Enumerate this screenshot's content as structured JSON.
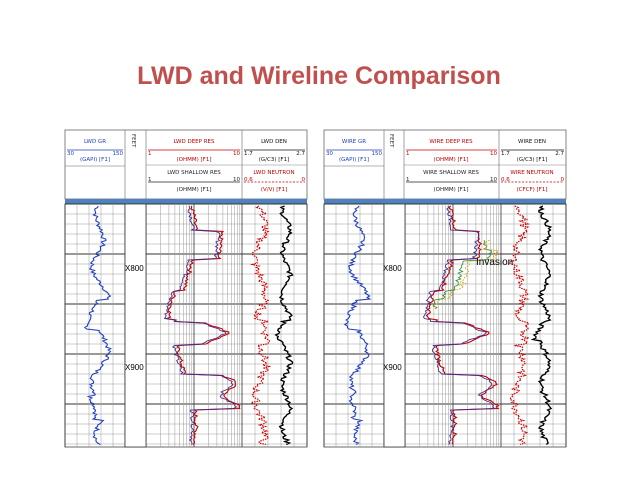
{
  "slide": {
    "title": "LWD and Wireline Comparison",
    "accent_color": "#c0504d",
    "divider_color": "#4f81bd"
  },
  "panels": [
    {
      "id": "lwd",
      "depth_track_label": "FEET",
      "track1": {
        "name": "LWD GR",
        "unit": "(GAPI) [F1]",
        "scale_min": "30",
        "scale_max": "150",
        "color": "#1f3fbf"
      },
      "track2": {
        "name": "LWD DEEP RES",
        "unit": "(OHMM) [F1]",
        "scale_min": "1",
        "scale_max": "10",
        "name2": "LWD SHALLOW RES",
        "unit2": "(OHMM) [F1]",
        "scale2_min": "1",
        "scale2_max": "10"
      },
      "track3": {
        "name": "LWD DEN",
        "unit": "(G/C3) [F1]",
        "scale_min": "1.7",
        "scale_max": "2.7",
        "name2": "LWD NEUTRON",
        "unit2": "(V/V) [F1]",
        "scale2_min": "0.6",
        "scale2_max": "0"
      },
      "depth_markers": [
        "X800",
        "X900"
      ]
    },
    {
      "id": "wireline",
      "depth_track_label": "FEET",
      "track1": {
        "name": "WIRE GR",
        "unit": "(GAPI) [F1]",
        "scale_min": "30",
        "scale_max": "150",
        "color": "#1f3fbf"
      },
      "track2": {
        "name": "WIRE DEEP RES",
        "unit": "(OHMM) [F1]",
        "scale_min": "1",
        "scale_max": "10",
        "name2": "WIRE SHALLOW RES",
        "unit2": "(OHMM) [F1]",
        "scale2_min": "1",
        "scale2_max": "10"
      },
      "track3": {
        "name": "WIRE DEN",
        "unit": "(G/C3) [F1]",
        "scale_min": "1.7",
        "scale_max": "2.7",
        "name2": "WIRE NEUTRON",
        "unit2": "(CFCF) [F1]",
        "scale2_min": "0.6",
        "scale2_max": "0"
      },
      "depth_markers": [
        "X800",
        "X900"
      ],
      "annotation": "Invasion"
    }
  ]
}
